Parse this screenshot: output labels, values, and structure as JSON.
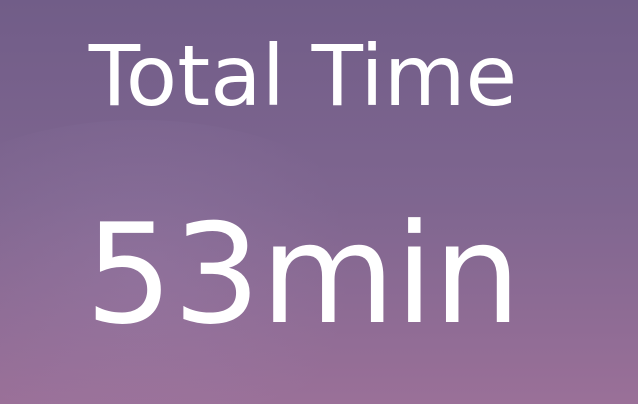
{
  "timer": {
    "label": "Total Time",
    "value": "53min"
  },
  "theme": {
    "background_top": "#715d88",
    "background_bottom": "#9a7098",
    "text": "#ffffff"
  }
}
